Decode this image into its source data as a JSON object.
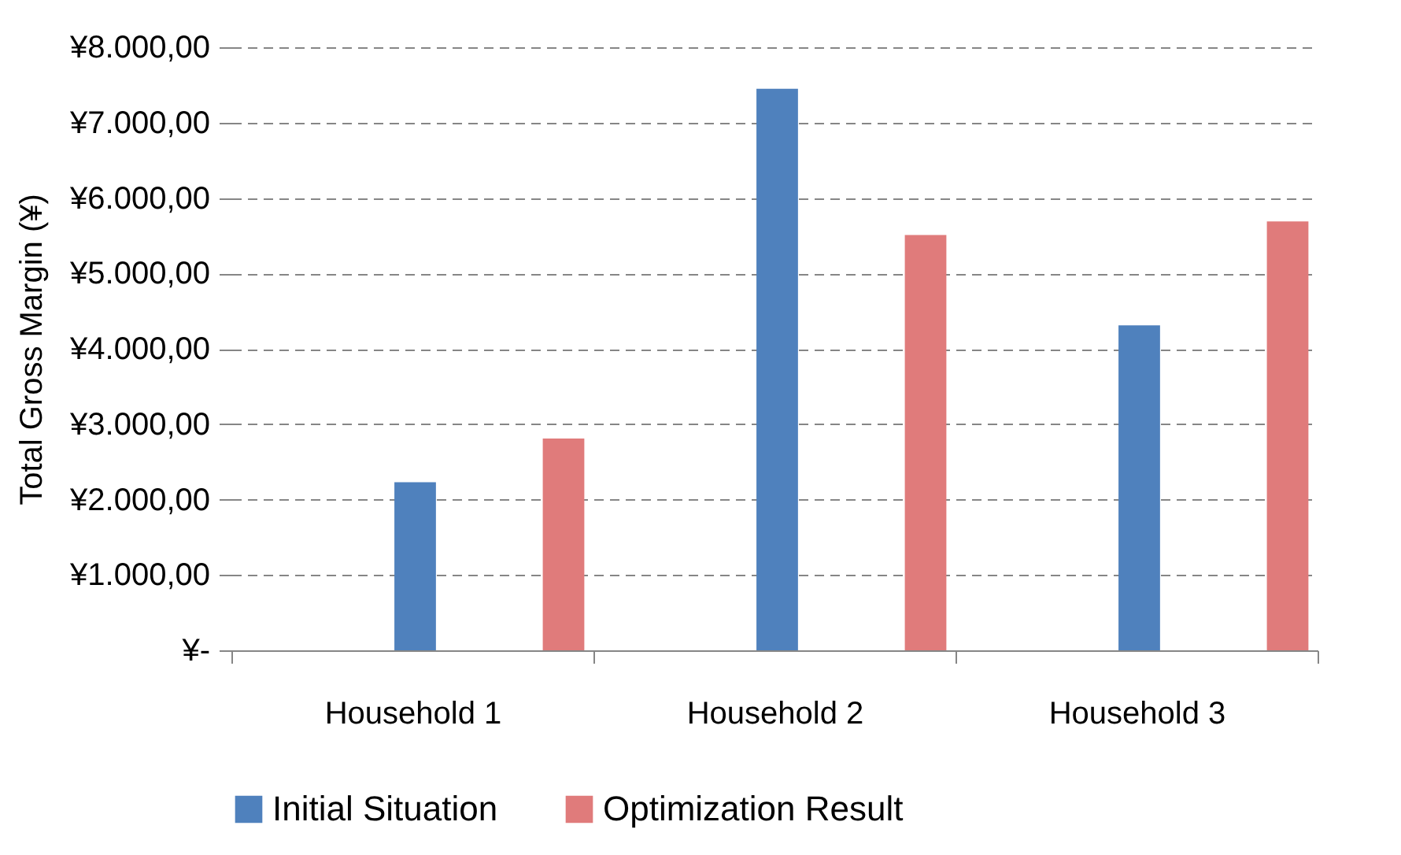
{
  "chart_data": {
    "type": "bar",
    "ylabel": "Total Gross Margin (¥)",
    "categories": [
      "Household 1",
      "Household 2",
      "Household 3"
    ],
    "series": [
      {
        "name": "Initial Situation",
        "color": "#4f81bd",
        "values": [
          2230,
          7450,
          4310
        ]
      },
      {
        "name": "Optimization Result",
        "color": "#e07b7b",
        "values": [
          2810,
          5510,
          5690
        ]
      }
    ],
    "ylim": [
      0,
      8000
    ],
    "yticks": [
      {
        "value": 0,
        "label": "¥-"
      },
      {
        "value": 1000,
        "label": "¥1.000,00"
      },
      {
        "value": 2000,
        "label": "¥2.000,00"
      },
      {
        "value": 3000,
        "label": "¥3.000,00"
      },
      {
        "value": 4000,
        "label": "¥4.000,00"
      },
      {
        "value": 5000,
        "label": "¥5.000,00"
      },
      {
        "value": 6000,
        "label": "¥6.000,00"
      },
      {
        "value": 7000,
        "label": "¥7.000,00"
      },
      {
        "value": 8000,
        "label": "¥8.000,00"
      }
    ],
    "grid": "y",
    "legend": "bottom"
  }
}
